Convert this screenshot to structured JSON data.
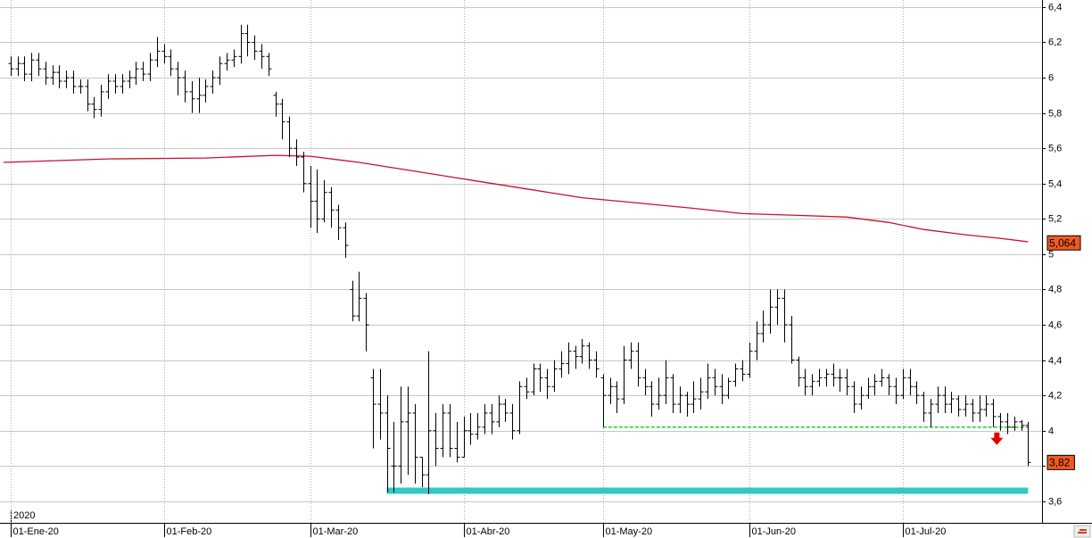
{
  "chart_data": {
    "type": "ohlc",
    "bar_color": "#000000",
    "xlim": [
      -1.5,
      148
    ],
    "ylim": [
      3.478,
      6.44
    ],
    "grid": true,
    "year_label": "2020",
    "xticks": [
      {
        "value": 0,
        "label": "01-Ene-20"
      },
      {
        "value": 22,
        "label": "01-Feb-20"
      },
      {
        "value": 43,
        "label": "01-Mar-20"
      },
      {
        "value": 65,
        "label": "01-Abr-20"
      },
      {
        "value": 85,
        "label": "01-May-20"
      },
      {
        "value": 106,
        "label": "01-Jun-20"
      },
      {
        "value": 128,
        "label": "01-Jul-20"
      }
    ],
    "yticks": [
      {
        "value": 3.6,
        "label": "3,6"
      },
      {
        "value": 3.8,
        "label": "3,8"
      },
      4,
      {
        "value": 4.2,
        "label": "4,2"
      },
      {
        "value": 4.4,
        "label": "4,4"
      },
      {
        "value": 4.6,
        "label": "4,6"
      },
      {
        "value": 4.8,
        "label": "4,8"
      },
      5,
      {
        "value": 5.2,
        "label": "5,2"
      },
      {
        "value": 5.4,
        "label": "5,4"
      },
      {
        "value": 5.6,
        "label": "5,6"
      },
      {
        "value": 5.8,
        "label": "5,8"
      },
      6,
      {
        "value": 6.2,
        "label": "6,2"
      },
      {
        "value": 6.4,
        "label": "6,4"
      }
    ],
    "open": [
      6.08,
      6.05,
      6.08,
      6.02,
      6.1,
      6.05,
      6.0,
      6.03,
      5.98,
      6.0,
      5.95,
      5.95,
      5.85,
      5.82,
      5.92,
      5.98,
      5.95,
      5.98,
      6.0,
      6.05,
      6.02,
      6.1,
      6.15,
      6.12,
      6.05,
      6.0,
      5.92,
      5.88,
      5.9,
      5.95,
      6.0,
      6.08,
      6.1,
      6.12,
      6.25,
      6.2,
      6.15,
      6.12,
      5.9,
      5.85,
      5.75,
      5.6,
      5.55,
      5.4,
      5.3,
      5.2,
      5.35,
      5.25,
      5.15,
      4.8,
      4.65,
      4.75,
      4.3,
      4.15,
      4.1,
      3.8,
      3.8,
      4.05,
      4.1,
      3.85,
      3.75,
      4.0,
      3.9,
      4.1,
      3.9,
      3.85,
      4.0,
      3.98,
      4.02,
      4.1,
      4.05,
      4.15,
      4.1,
      4.0,
      4.25,
      4.22,
      4.35,
      4.3,
      4.25,
      4.35,
      4.38,
      4.45,
      4.42,
      4.48,
      4.4,
      4.3,
      4.2,
      4.25,
      4.18,
      4.4,
      4.45,
      4.3,
      4.25,
      4.15,
      4.2,
      4.3,
      4.15,
      4.2,
      4.15,
      4.18,
      4.22,
      4.3,
      4.25,
      4.2,
      4.28,
      4.35,
      4.32,
      4.45,
      4.55,
      4.6,
      4.7,
      4.75,
      4.6,
      4.4,
      4.3,
      4.25,
      4.28,
      4.3,
      4.32,
      4.3,
      4.3,
      4.25,
      4.15,
      4.2,
      4.25,
      4.28,
      4.3,
      4.25,
      4.2,
      4.3,
      4.25,
      4.2,
      4.1,
      4.15,
      4.2,
      4.15,
      4.18,
      4.12,
      4.15,
      4.1,
      4.12,
      4.15,
      4.08,
      4.05,
      4.02,
      4.05,
      4.03
    ],
    "high": [
      6.12,
      6.12,
      6.12,
      6.14,
      6.14,
      6.09,
      6.07,
      6.07,
      6.04,
      6.04,
      5.99,
      5.99,
      5.89,
      5.96,
      6.02,
      6.02,
      6.02,
      6.04,
      6.09,
      6.09,
      6.14,
      6.23,
      6.19,
      6.16,
      6.09,
      6.04,
      5.98,
      6.0,
      5.99,
      6.04,
      6.12,
      6.14,
      6.16,
      6.3,
      6.3,
      6.24,
      6.19,
      6.14,
      5.92,
      5.88,
      5.78,
      5.65,
      5.58,
      5.5,
      5.48,
      5.42,
      5.38,
      5.28,
      5.18,
      4.85,
      4.9,
      4.78,
      4.35,
      4.35,
      4.2,
      4.05,
      4.25,
      4.25,
      4.15,
      3.85,
      4.45,
      4.1,
      4.15,
      4.15,
      4.05,
      4.08,
      4.1,
      4.1,
      4.15,
      4.15,
      4.2,
      4.18,
      4.15,
      4.28,
      4.3,
      4.38,
      4.38,
      4.35,
      4.4,
      4.45,
      4.5,
      4.48,
      4.52,
      4.5,
      4.45,
      4.32,
      4.3,
      4.28,
      4.48,
      4.5,
      4.5,
      4.35,
      4.28,
      4.3,
      4.4,
      4.32,
      4.25,
      4.22,
      4.28,
      4.3,
      4.38,
      4.35,
      4.32,
      4.3,
      4.38,
      4.4,
      4.5,
      4.62,
      4.68,
      4.8,
      4.8,
      4.8,
      4.65,
      4.42,
      4.35,
      4.32,
      4.35,
      4.35,
      4.38,
      4.35,
      4.35,
      4.28,
      4.25,
      4.3,
      4.32,
      4.35,
      4.32,
      4.3,
      4.35,
      4.35,
      4.28,
      4.22,
      4.18,
      4.25,
      4.25,
      4.22,
      4.2,
      4.2,
      4.18,
      4.2,
      4.2,
      4.18,
      4.1,
      4.1,
      4.08,
      4.06,
      4.05
    ],
    "low": [
      6.01,
      6.01,
      5.98,
      5.98,
      6.01,
      5.96,
      5.96,
      5.94,
      5.94,
      5.91,
      5.91,
      5.81,
      5.77,
      5.78,
      5.88,
      5.91,
      5.91,
      5.94,
      5.96,
      5.98,
      5.98,
      6.06,
      6.08,
      6.01,
      5.9,
      5.86,
      5.8,
      5.8,
      5.86,
      5.91,
      5.96,
      6.04,
      6.06,
      6.08,
      6.12,
      6.1,
      6.05,
      6.01,
      5.78,
      5.65,
      5.55,
      5.5,
      5.35,
      5.15,
      5.12,
      5.18,
      5.15,
      5.08,
      4.98,
      4.62,
      4.62,
      4.45,
      3.9,
      3.95,
      3.65,
      3.65,
      3.7,
      3.75,
      3.7,
      3.68,
      3.64,
      3.8,
      3.85,
      3.85,
      3.82,
      3.85,
      3.92,
      3.95,
      3.98,
      3.98,
      4.02,
      4.05,
      3.95,
      3.98,
      4.18,
      4.2,
      4.22,
      4.18,
      4.22,
      4.3,
      4.32,
      4.35,
      4.38,
      4.35,
      4.3,
      4.02,
      4.15,
      4.1,
      4.15,
      4.35,
      4.25,
      4.2,
      4.08,
      4.12,
      4.15,
      4.1,
      4.1,
      4.08,
      4.1,
      4.12,
      4.18,
      4.2,
      4.15,
      4.18,
      4.25,
      4.28,
      4.3,
      4.4,
      4.5,
      4.55,
      4.6,
      4.5,
      4.38,
      4.25,
      4.2,
      4.2,
      4.25,
      4.25,
      4.25,
      4.22,
      4.2,
      4.1,
      4.12,
      4.18,
      4.2,
      4.25,
      4.2,
      4.15,
      4.18,
      4.2,
      4.15,
      4.05,
      4.02,
      4.1,
      4.1,
      4.1,
      4.08,
      4.08,
      4.05,
      4.05,
      4.08,
      4.02,
      4.0,
      3.98,
      4.0,
      4.0,
      3.8
    ],
    "close": [
      6.05,
      6.08,
      6.02,
      6.1,
      6.05,
      6.0,
      6.03,
      5.98,
      6.0,
      5.95,
      5.95,
      5.85,
      5.82,
      5.92,
      5.98,
      5.95,
      5.98,
      6.0,
      6.05,
      6.02,
      6.1,
      6.15,
      6.12,
      6.05,
      6.0,
      5.92,
      5.88,
      5.9,
      5.95,
      6.0,
      6.08,
      6.1,
      6.12,
      6.25,
      6.2,
      6.15,
      6.12,
      6.05,
      5.85,
      5.75,
      5.6,
      5.55,
      5.4,
      5.3,
      5.2,
      5.35,
      5.25,
      5.15,
      5.05,
      4.65,
      4.75,
      4.6,
      4.15,
      4.1,
      3.9,
      3.8,
      4.05,
      4.1,
      3.85,
      3.75,
      4.0,
      3.9,
      4.1,
      3.9,
      3.85,
      4.0,
      3.98,
      4.02,
      4.1,
      4.05,
      4.15,
      4.1,
      4.0,
      4.25,
      4.22,
      4.35,
      4.3,
      4.25,
      4.35,
      4.38,
      4.45,
      4.42,
      4.48,
      4.4,
      4.35,
      4.2,
      4.25,
      4.18,
      4.4,
      4.45,
      4.3,
      4.25,
      4.15,
      4.2,
      4.3,
      4.15,
      4.2,
      4.15,
      4.18,
      4.22,
      4.3,
      4.25,
      4.2,
      4.28,
      4.35,
      4.32,
      4.45,
      4.55,
      4.6,
      4.7,
      4.75,
      4.6,
      4.4,
      4.3,
      4.25,
      4.28,
      4.3,
      4.32,
      4.3,
      4.3,
      4.25,
      4.15,
      4.2,
      4.25,
      4.28,
      4.3,
      4.25,
      4.2,
      4.3,
      4.25,
      4.2,
      4.1,
      4.15,
      4.2,
      4.15,
      4.18,
      4.12,
      4.15,
      4.1,
      4.12,
      4.15,
      4.08,
      4.05,
      4.02,
      4.05,
      4.03,
      3.82
    ],
    "moving_average": {
      "color": "#c8102e",
      "x": [
        -1,
        14,
        28,
        38,
        43,
        50,
        58,
        66,
        74,
        82,
        90,
        98,
        105,
        113,
        120,
        126,
        131,
        137,
        142,
        146
      ],
      "values": [
        5.52,
        5.54,
        5.545,
        5.56,
        5.555,
        5.52,
        5.47,
        5.42,
        5.37,
        5.32,
        5.29,
        5.26,
        5.23,
        5.22,
        5.21,
        5.18,
        5.14,
        5.11,
        5.09,
        5.07
      ]
    },
    "support": {
      "value": 3.66,
      "x": [
        54,
        146
      ],
      "color": "#33c8c8"
    },
    "resistance": {
      "value": 4.02,
      "x": [
        85,
        146
      ],
      "color": "#22cc22"
    },
    "price_labels": [
      {
        "value": 5.064,
        "label": "5,064"
      },
      {
        "value": 3.82,
        "label": "3,82"
      }
    ],
    "price_label_color": "#f05a22"
  }
}
